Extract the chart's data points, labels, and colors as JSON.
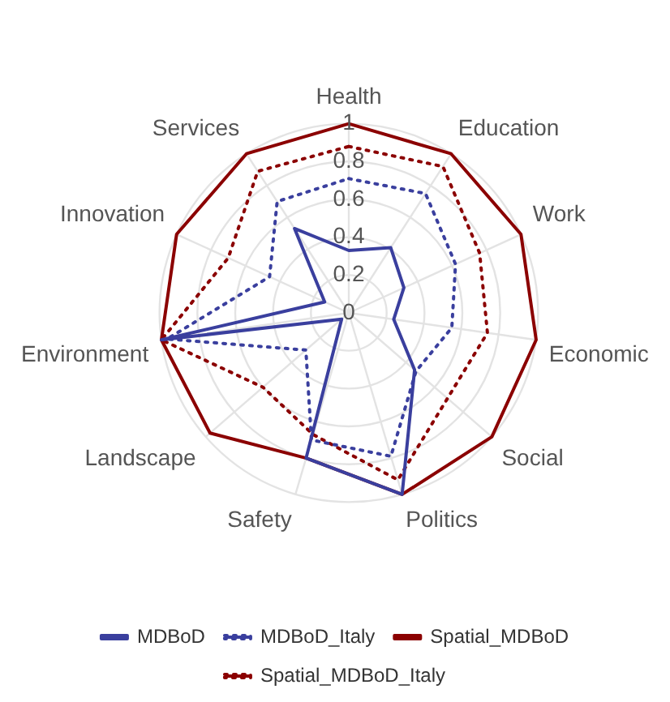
{
  "chart_data": {
    "type": "radar",
    "categories": [
      "Health",
      "Education",
      "Work",
      "Economic",
      "Social",
      "Politics",
      "Safety",
      "Landscape",
      "Environment",
      "Innovation",
      "Services"
    ],
    "series": [
      {
        "name": "MDBoD",
        "color": "#3a3f9e",
        "line_style": "solid",
        "values": [
          0.33,
          0.41,
          0.32,
          0.24,
          0.46,
          1,
          0.8,
          0.05,
          1,
          0.14,
          0.53
        ]
      },
      {
        "name": "MDBoD_Italy",
        "color": "#3a3f9e",
        "line_style": "dotted",
        "values": [
          0.71,
          0.75,
          0.62,
          0.55,
          0.47,
          0.79,
          0.7,
          0.3,
          0.97,
          0.46,
          0.7
        ]
      },
      {
        "name": "Spatial_MDBoD",
        "color": "#8b0000",
        "line_style": "solid",
        "values": [
          1,
          1,
          1,
          1,
          1,
          1,
          0.8,
          0.97,
          1,
          1,
          1
        ]
      },
      {
        "name": "Spatial_MDBoD_Italy",
        "color": "#8b0000",
        "line_style": "dotted",
        "values": [
          0.88,
          0.92,
          0.76,
          0.74,
          0.69,
          0.92,
          0.67,
          0.6,
          1,
          0.7,
          0.89
        ]
      }
    ],
    "ylim": [
      0,
      1
    ],
    "yticks": [
      0,
      0.2,
      0.4,
      0.6,
      0.8,
      1
    ],
    "grid": true,
    "legend": "bottom",
    "marker": "none"
  }
}
